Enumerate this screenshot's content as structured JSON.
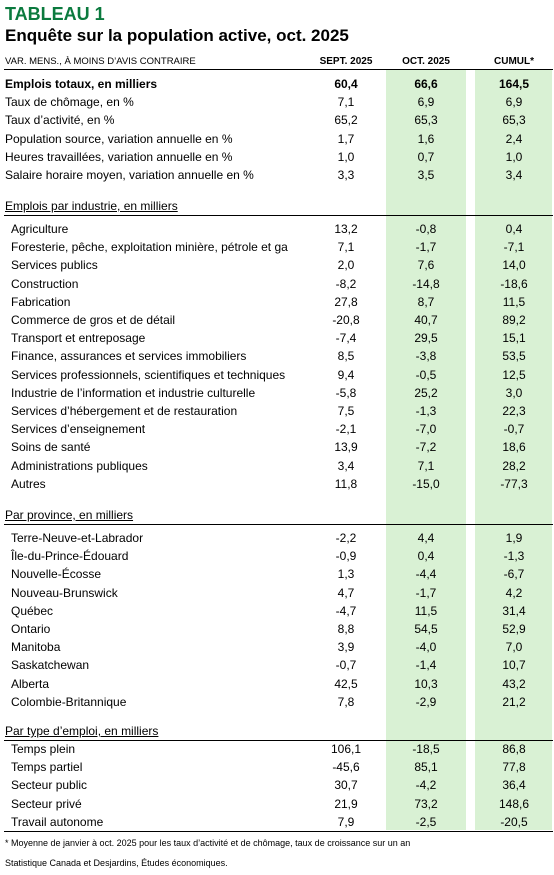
{
  "title": "TABLEAU 1",
  "subtitle": "Enquête sur la population active, oct. 2025",
  "header": {
    "left": "VAR. MENS., À MOINS D’AVIS CONTRAIRE",
    "sept": "SEPT. 2025",
    "oct": "OCT. 2025",
    "cumul": "CUMUL*"
  },
  "top_rows": [
    {
      "label": "Emplois totaux, en milliers",
      "sept": "60,4",
      "oct": "66,6",
      "cumul": "164,5"
    },
    {
      "label": "Taux de chômage, en %",
      "sept": "7,1",
      "oct": "6,9",
      "cumul": "6,9"
    },
    {
      "label": "Taux d’activité, en %",
      "sept": "65,2",
      "oct": "65,3",
      "cumul": "65,3"
    },
    {
      "label": "Population source, variation annuelle en %",
      "sept": "1,7",
      "oct": "1,6",
      "cumul": "2,4"
    },
    {
      "label": "Heures travaillées, variation annuelle en %",
      "sept": "1,0",
      "oct": "0,7",
      "cumul": "1,0"
    },
    {
      "label": "Salaire horaire moyen, variation annuelle en %",
      "sept": "3,3",
      "oct": "3,5",
      "cumul": "3,4"
    }
  ],
  "industry": {
    "title": "Emplois par industrie, en milliers",
    "rows": [
      {
        "label": "Agriculture",
        "sept": "13,2",
        "oct": "-0,8",
        "cumul": "0,4"
      },
      {
        "label": "Foresterie, pêche, exploitation minière, pétrole et ga",
        "sept": "7,1",
        "oct": "-1,7",
        "cumul": "-7,1"
      },
      {
        "label": "Services publics",
        "sept": "2,0",
        "oct": "7,6",
        "cumul": "14,0"
      },
      {
        "label": "Construction",
        "sept": "-8,2",
        "oct": "-14,8",
        "cumul": "-18,6"
      },
      {
        "label": "Fabrication",
        "sept": "27,8",
        "oct": "8,7",
        "cumul": "11,5"
      },
      {
        "label": "Commerce de gros et de détail",
        "sept": "-20,8",
        "oct": "40,7",
        "cumul": "89,2"
      },
      {
        "label": "Transport et entreposage",
        "sept": "-7,4",
        "oct": "29,5",
        "cumul": "15,1"
      },
      {
        "label": "Finance, assurances et services immobiliers",
        "sept": "8,5",
        "oct": "-3,8",
        "cumul": "53,5"
      },
      {
        "label": "Services professionnels, scientifiques et techniques",
        "sept": "9,4",
        "oct": "-0,5",
        "cumul": "12,5"
      },
      {
        "label": "Industrie de l’information et industrie culturelle",
        "sept": "-5,8",
        "oct": "25,2",
        "cumul": "3,0"
      },
      {
        "label": "Services d’hébergement et de restauration",
        "sept": "7,5",
        "oct": "-1,3",
        "cumul": "22,3"
      },
      {
        "label": "Services d’enseignement",
        "sept": "-2,1",
        "oct": "-7,0",
        "cumul": "-0,7"
      },
      {
        "label": "Soins de santé",
        "sept": "13,9",
        "oct": "-7,2",
        "cumul": "18,6"
      },
      {
        "label": "Administrations publiques",
        "sept": "3,4",
        "oct": "7,1",
        "cumul": "28,2"
      },
      {
        "label": "Autres",
        "sept": "11,8",
        "oct": "-15,0",
        "cumul": "-77,3"
      }
    ]
  },
  "province": {
    "title": "Par province, en milliers",
    "rows": [
      {
        "label": "Terre-Neuve-et-Labrador",
        "sept": "-2,2",
        "oct": "4,4",
        "cumul": "1,9"
      },
      {
        "label": "Île-du-Prince-Édouard",
        "sept": "-0,9",
        "oct": "0,4",
        "cumul": "-1,3"
      },
      {
        "label": "Nouvelle-Écosse",
        "sept": "1,3",
        "oct": "-4,4",
        "cumul": "-6,7"
      },
      {
        "label": "Nouveau-Brunswick",
        "sept": "4,7",
        "oct": "-1,7",
        "cumul": "4,2"
      },
      {
        "label": "Québec",
        "sept": "-4,7",
        "oct": "11,5",
        "cumul": "31,4"
      },
      {
        "label": "Ontario",
        "sept": "8,8",
        "oct": "54,5",
        "cumul": "52,9"
      },
      {
        "label": "Manitoba",
        "sept": "3,9",
        "oct": "-4,0",
        "cumul": "7,0"
      },
      {
        "label": "Saskatchewan",
        "sept": "-0,7",
        "oct": "-1,4",
        "cumul": "10,7"
      },
      {
        "label": "Alberta",
        "sept": "42,5",
        "oct": "10,3",
        "cumul": "43,2"
      },
      {
        "label": "Colombie-Britannique",
        "sept": "7,8",
        "oct": "-2,9",
        "cumul": "21,2"
      }
    ]
  },
  "employment": {
    "title": "Par type d’emploi, en milliers",
    "rows": [
      {
        "label": "Temps plein",
        "sept": "106,1",
        "oct": "-18,5",
        "cumul": "86,8"
      },
      {
        "label": "Temps partiel",
        "sept": "-45,6",
        "oct": "85,1",
        "cumul": "77,8"
      },
      {
        "label": "Secteur public",
        "sept": "30,7",
        "oct": "-4,2",
        "cumul": "36,4"
      },
      {
        "label": "Secteur privé",
        "sept": "21,9",
        "oct": "73,2",
        "cumul": "148,6"
      },
      {
        "label": "Travail autonome",
        "sept": "7,9",
        "oct": "-2,5",
        "cumul": "-20,5"
      }
    ]
  },
  "footnotes": {
    "note1": "* Moyenne de janvier à oct. 2025 pour les taux d’activité et de chômage, taux de croissance sur un an",
    "note2": "Statistique Canada et Desjardins, Études économiques."
  },
  "colors": {
    "title": "#0b7a3e",
    "column_shade": "#d9f1d4"
  }
}
